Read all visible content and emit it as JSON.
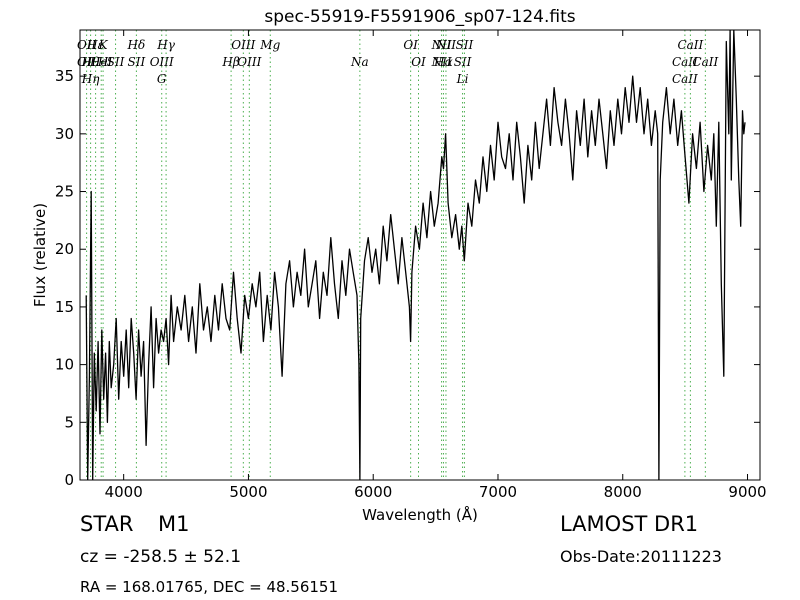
{
  "chart_data": {
    "type": "line",
    "title": "spec-55919-F5591906_sp07-124.fits",
    "xlabel": "Wavelength (Å)",
    "ylabel": "Flux (relative)",
    "xlim": [
      3650,
      9100
    ],
    "ylim": [
      0,
      39
    ],
    "xticks": [
      4000,
      5000,
      6000,
      7000,
      8000,
      9000
    ],
    "yticks": [
      0,
      5,
      10,
      15,
      20,
      25,
      30,
      35
    ],
    "grid": false,
    "series": [
      {
        "color": "#000000",
        "points": [
          [
            3700,
            16
          ],
          [
            3712,
            0
          ],
          [
            3725,
            9
          ],
          [
            3740,
            25
          ],
          [
            3752,
            0
          ],
          [
            3765,
            11
          ],
          [
            3780,
            6
          ],
          [
            3795,
            12
          ],
          [
            3810,
            4
          ],
          [
            3825,
            13
          ],
          [
            3840,
            7
          ],
          [
            3855,
            11
          ],
          [
            3870,
            5
          ],
          [
            3885,
            12
          ],
          [
            3900,
            8
          ],
          [
            3920,
            10
          ],
          [
            3940,
            14
          ],
          [
            3960,
            7
          ],
          [
            3980,
            12
          ],
          [
            4000,
            9
          ],
          [
            4020,
            13
          ],
          [
            4040,
            8
          ],
          [
            4060,
            14
          ],
          [
            4080,
            11
          ],
          [
            4100,
            7
          ],
          [
            4120,
            13
          ],
          [
            4140,
            9
          ],
          [
            4160,
            12
          ],
          [
            4180,
            3
          ],
          [
            4200,
            10
          ],
          [
            4220,
            15
          ],
          [
            4240,
            8
          ],
          [
            4260,
            14
          ],
          [
            4280,
            11
          ],
          [
            4300,
            13
          ],
          [
            4320,
            12
          ],
          [
            4340,
            14
          ],
          [
            4360,
            10
          ],
          [
            4380,
            16
          ],
          [
            4400,
            12
          ],
          [
            4430,
            15
          ],
          [
            4460,
            13
          ],
          [
            4490,
            16
          ],
          [
            4520,
            12
          ],
          [
            4550,
            15
          ],
          [
            4580,
            11
          ],
          [
            4610,
            17
          ],
          [
            4640,
            13
          ],
          [
            4670,
            15
          ],
          [
            4700,
            12
          ],
          [
            4730,
            16
          ],
          [
            4760,
            13
          ],
          [
            4790,
            17
          ],
          [
            4820,
            14
          ],
          [
            4850,
            13
          ],
          [
            4880,
            18
          ],
          [
            4910,
            14
          ],
          [
            4940,
            11
          ],
          [
            4970,
            16
          ],
          [
            5000,
            14
          ],
          [
            5030,
            17
          ],
          [
            5060,
            15
          ],
          [
            5090,
            18
          ],
          [
            5120,
            12
          ],
          [
            5150,
            16
          ],
          [
            5180,
            13
          ],
          [
            5210,
            18
          ],
          [
            5240,
            15
          ],
          [
            5270,
            9
          ],
          [
            5300,
            17
          ],
          [
            5330,
            19
          ],
          [
            5360,
            15
          ],
          [
            5390,
            18
          ],
          [
            5420,
            16
          ],
          [
            5450,
            20
          ],
          [
            5480,
            15
          ],
          [
            5510,
            17
          ],
          [
            5540,
            19
          ],
          [
            5570,
            14
          ],
          [
            5600,
            18
          ],
          [
            5630,
            16
          ],
          [
            5660,
            21
          ],
          [
            5690,
            17
          ],
          [
            5720,
            14
          ],
          [
            5750,
            19
          ],
          [
            5780,
            16
          ],
          [
            5810,
            20
          ],
          [
            5840,
            18
          ],
          [
            5870,
            16
          ],
          [
            5885,
            10
          ],
          [
            5893,
            0
          ],
          [
            5900,
            14
          ],
          [
            5930,
            19
          ],
          [
            5960,
            21
          ],
          [
            5990,
            18
          ],
          [
            6020,
            20
          ],
          [
            6050,
            17
          ],
          [
            6080,
            22
          ],
          [
            6110,
            19
          ],
          [
            6140,
            23
          ],
          [
            6170,
            20
          ],
          [
            6200,
            17
          ],
          [
            6230,
            21
          ],
          [
            6260,
            18
          ],
          [
            6290,
            15
          ],
          [
            6300,
            12
          ],
          [
            6310,
            18
          ],
          [
            6340,
            22
          ],
          [
            6370,
            20
          ],
          [
            6400,
            24
          ],
          [
            6430,
            21
          ],
          [
            6460,
            25
          ],
          [
            6490,
            22
          ],
          [
            6520,
            24
          ],
          [
            6550,
            28
          ],
          [
            6563,
            27
          ],
          [
            6580,
            30
          ],
          [
            6600,
            24
          ],
          [
            6630,
            21
          ],
          [
            6660,
            23
          ],
          [
            6690,
            20
          ],
          [
            6710,
            22
          ],
          [
            6730,
            19
          ],
          [
            6760,
            24
          ],
          [
            6790,
            22
          ],
          [
            6820,
            26
          ],
          [
            6850,
            24
          ],
          [
            6880,
            28
          ],
          [
            6910,
            25
          ],
          [
            6940,
            29
          ],
          [
            6970,
            26
          ],
          [
            7000,
            31
          ],
          [
            7030,
            28
          ],
          [
            7060,
            27
          ],
          [
            7090,
            30
          ],
          [
            7120,
            26
          ],
          [
            7150,
            31
          ],
          [
            7180,
            28
          ],
          [
            7210,
            24
          ],
          [
            7240,
            29
          ],
          [
            7270,
            26
          ],
          [
            7300,
            31
          ],
          [
            7330,
            27
          ],
          [
            7360,
            30
          ],
          [
            7390,
            33
          ],
          [
            7420,
            29
          ],
          [
            7450,
            34
          ],
          [
            7480,
            31
          ],
          [
            7510,
            29
          ],
          [
            7540,
            33
          ],
          [
            7570,
            30
          ],
          [
            7600,
            26
          ],
          [
            7630,
            32
          ],
          [
            7660,
            29
          ],
          [
            7690,
            33
          ],
          [
            7720,
            28
          ],
          [
            7750,
            32
          ],
          [
            7780,
            29
          ],
          [
            7810,
            33
          ],
          [
            7840,
            30
          ],
          [
            7870,
            27
          ],
          [
            7900,
            32
          ],
          [
            7930,
            29
          ],
          [
            7960,
            33
          ],
          [
            7990,
            30
          ],
          [
            8020,
            34
          ],
          [
            8050,
            31
          ],
          [
            8080,
            35
          ],
          [
            8110,
            31
          ],
          [
            8140,
            34
          ],
          [
            8170,
            30
          ],
          [
            8200,
            33
          ],
          [
            8230,
            29
          ],
          [
            8260,
            32
          ],
          [
            8280,
            30
          ],
          [
            8290,
            0
          ],
          [
            8300,
            26
          ],
          [
            8320,
            31
          ],
          [
            8350,
            34
          ],
          [
            8380,
            30
          ],
          [
            8410,
            33
          ],
          [
            8440,
            29
          ],
          [
            8470,
            32
          ],
          [
            8500,
            28
          ],
          [
            8530,
            24
          ],
          [
            8560,
            30
          ],
          [
            8590,
            27
          ],
          [
            8620,
            31
          ],
          [
            8650,
            25
          ],
          [
            8680,
            29
          ],
          [
            8710,
            26
          ],
          [
            8730,
            30
          ],
          [
            8750,
            22
          ],
          [
            8770,
            31
          ],
          [
            8790,
            17
          ],
          [
            8810,
            9
          ],
          [
            8830,
            38
          ],
          [
            8850,
            30
          ],
          [
            8860,
            39
          ],
          [
            8870,
            26
          ],
          [
            8890,
            39
          ],
          [
            8910,
            33
          ],
          [
            8930,
            26
          ],
          [
            8945,
            22
          ],
          [
            8960,
            32
          ],
          [
            8970,
            30
          ],
          [
            8980,
            31
          ]
        ]
      }
    ],
    "lines": [
      {
        "x": 3703,
        "labels": [
          "OII",
          "OII"
        ]
      },
      {
        "x": 3735,
        "labels": [
          "Hθ",
          "Hη"
        ]
      },
      {
        "x": 3775,
        "labels": [
          "Hε"
        ]
      },
      {
        "x": 3820,
        "labels": [
          "HeI"
        ]
      },
      {
        "x": 3835,
        "labels": [
          "K",
          "H"
        ]
      },
      {
        "x": 3935,
        "labels": [
          "SII"
        ]
      },
      {
        "x": 4102,
        "labels": [
          "Hδ",
          "SII"
        ]
      },
      {
        "x": 4305,
        "labels": [
          "OIII",
          "G"
        ]
      },
      {
        "x": 4340,
        "labels": [
          "Hγ"
        ]
      },
      {
        "x": 4861,
        "labels": [
          "Hβ"
        ]
      },
      {
        "x": 4959,
        "labels": [
          "OIII"
        ]
      },
      {
        "x": 5007,
        "labels": [
          "OIII"
        ]
      },
      {
        "x": 5175,
        "labels": [
          "Mg"
        ]
      },
      {
        "x": 5893,
        "labels": [
          "Na"
        ]
      },
      {
        "x": 6300,
        "labels": [
          "OI"
        ]
      },
      {
        "x": 6363,
        "labels": [
          "OI"
        ]
      },
      {
        "x": 6548,
        "labels": [
          "NII",
          "NII"
        ]
      },
      {
        "x": 6563,
        "labels": [
          "Hα"
        ]
      },
      {
        "x": 6583,
        "labels": [
          "NII"
        ]
      },
      {
        "x": 6716,
        "labels": [
          "SII",
          "Li"
        ]
      },
      {
        "x": 6731,
        "labels": [
          "SII"
        ]
      },
      {
        "x": 8498,
        "labels": [
          "CaII",
          "CaII"
        ]
      },
      {
        "x": 8542,
        "labels": [
          "CaII"
        ]
      },
      {
        "x": 8662,
        "labels": [
          "CaII"
        ]
      }
    ]
  },
  "info": {
    "obj_type": "STAR",
    "obj_class": "M1",
    "cz": "cz = -258.5 ± 52.1",
    "radec": "RA = 168.01765, DEC = 48.56151",
    "survey": "LAMOST DR1",
    "obs_date": "Obs-Date:20111223"
  }
}
